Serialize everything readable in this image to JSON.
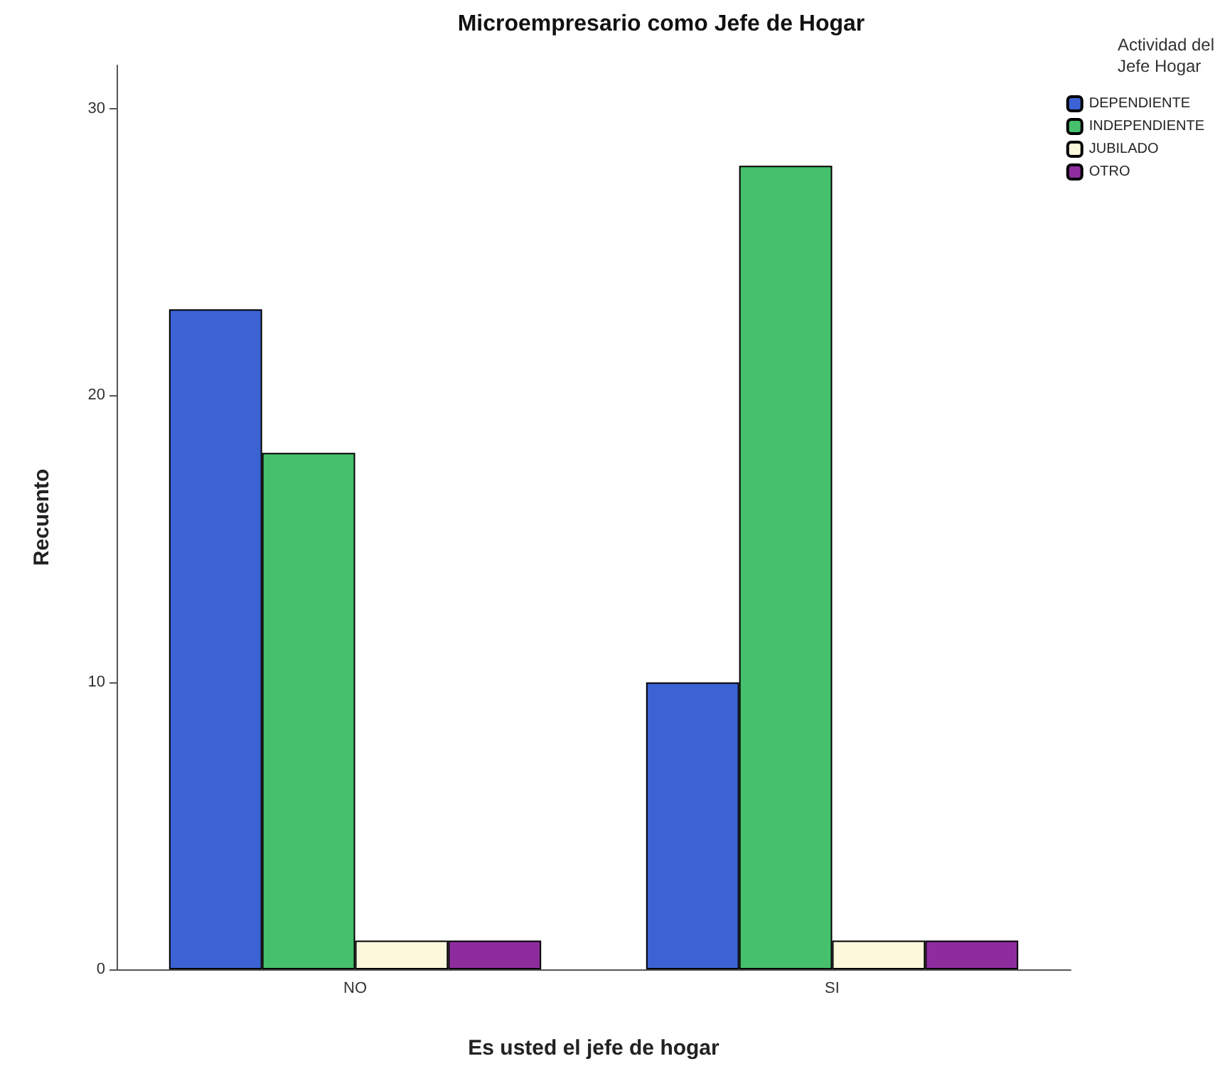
{
  "chart_data": {
    "type": "bar",
    "title": "Microempresario como Jefe de Hogar",
    "xlabel": "Es usted el jefe de hogar",
    "ylabel": "Recuento",
    "legend_title": "Actividad del Jefe Hogar",
    "categories": [
      "NO",
      "SI"
    ],
    "series": [
      {
        "name": "DEPENDIENTE",
        "color": "#3b63d4",
        "values": [
          23,
          10
        ]
      },
      {
        "name": "INDEPENDIENTE",
        "color": "#46c06c",
        "values": [
          18,
          28
        ]
      },
      {
        "name": "JUBILADO",
        "color": "#fbf8dc",
        "values": [
          1,
          1
        ]
      },
      {
        "name": "OTRO",
        "color": "#8e2c9e",
        "values": [
          1,
          1
        ]
      }
    ],
    "ylim": [
      0,
      31.5
    ],
    "yticks": [
      0,
      10,
      20,
      30
    ],
    "grid": false,
    "legend": "top right"
  }
}
